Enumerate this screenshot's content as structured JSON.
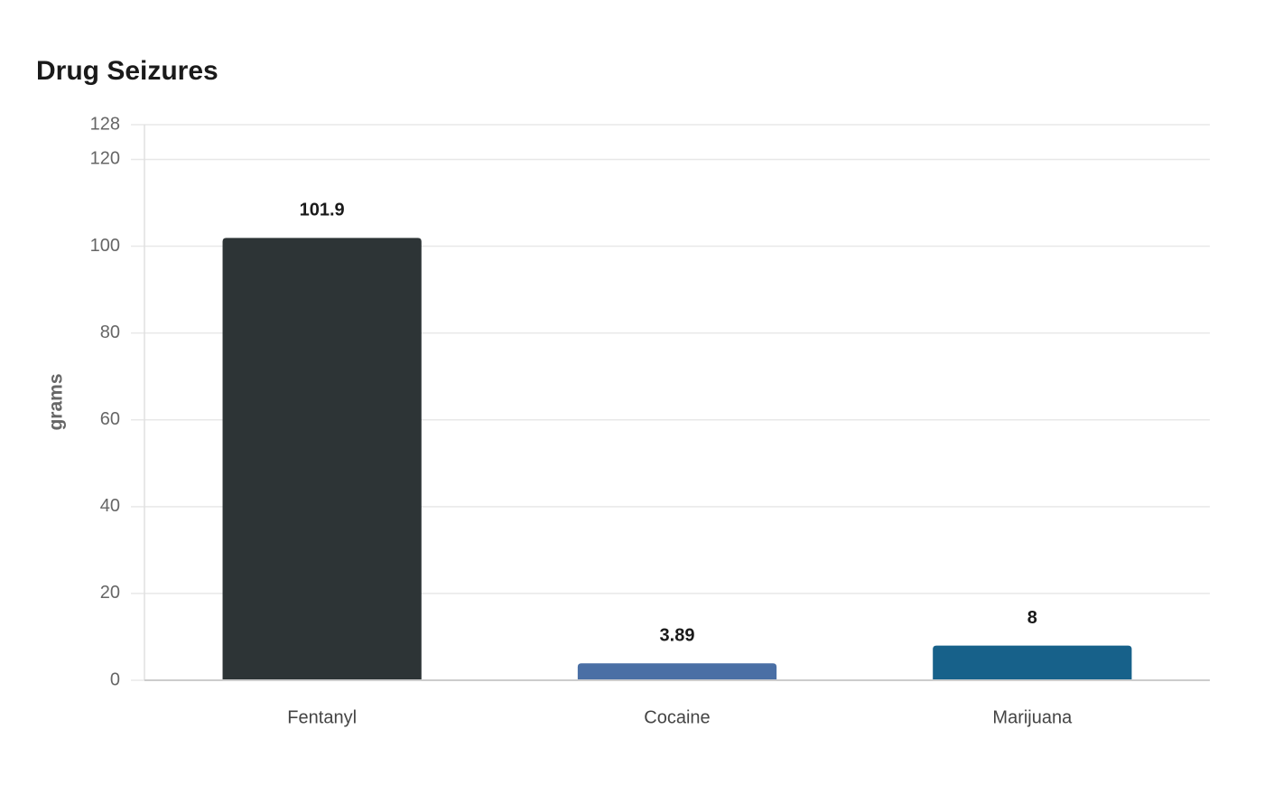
{
  "chart_data": {
    "type": "bar",
    "title": "Drug Seizures",
    "y_label": "grams",
    "categories": [
      "Fentanyl",
      "Cocaine",
      "Marijuana"
    ],
    "values": [
      101.9,
      3.89,
      8
    ],
    "colors": [
      "#2d3436",
      "#4a6fa5",
      "#17618a"
    ],
    "ylim": [
      0,
      128
    ],
    "yticks": [
      0,
      20,
      40,
      60,
      80,
      100,
      120,
      128
    ],
    "grid": true
  }
}
